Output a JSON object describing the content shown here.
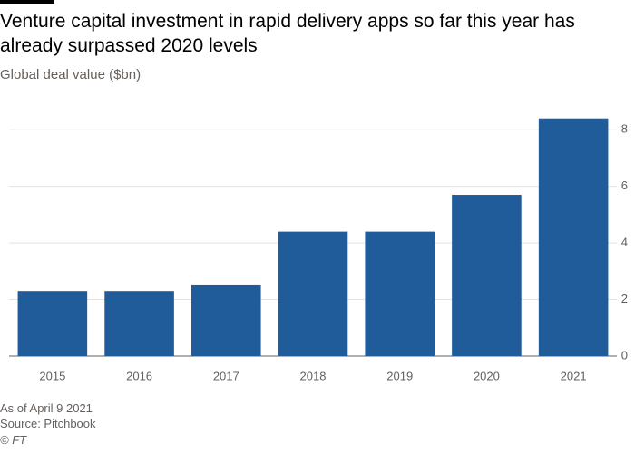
{
  "chart_data": {
    "type": "bar",
    "title": "Venture capital investment in rapid delivery apps so far this year has already surpassed 2020 levels",
    "subtitle": "Global deal value ($bn)",
    "categories": [
      "2015",
      "2016",
      "2017",
      "2018",
      "2019",
      "2020",
      "2021"
    ],
    "values": [
      2.3,
      2.3,
      2.5,
      4.4,
      4.4,
      5.7,
      8.4
    ],
    "color": "#1f5c99",
    "ylim": [
      0,
      9
    ],
    "yticks": [
      0,
      2,
      4,
      6,
      8
    ],
    "grid": true,
    "note": "As of April 9 2021",
    "source": "Source: Pitchbook",
    "credit": "© FT"
  }
}
